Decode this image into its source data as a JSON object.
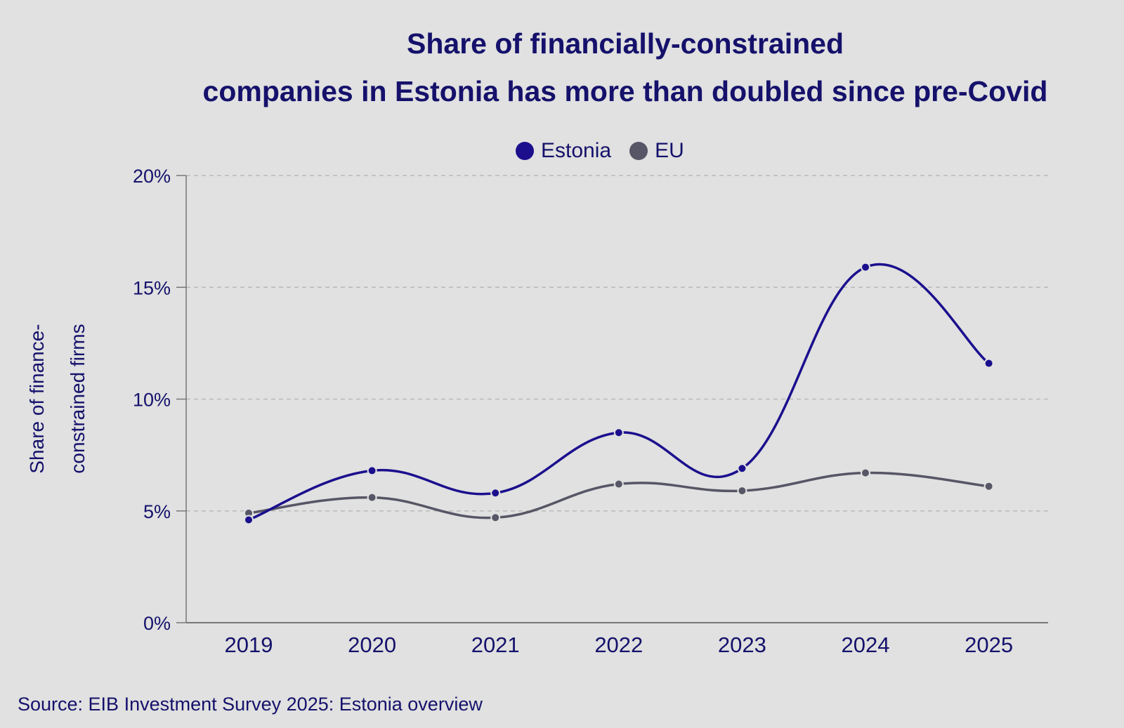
{
  "chart_data": {
    "type": "line",
    "title": [
      "Share of financially-constrained",
      "companies in Estonia has more than doubled since pre-Covid"
    ],
    "xlabel": "",
    "ylabel": [
      "Share of finance-",
      "constrained firms"
    ],
    "categories": [
      "2019",
      "2020",
      "2021",
      "2022",
      "2023",
      "2024",
      "2025"
    ],
    "series": [
      {
        "name": "Estonia",
        "color": "#1b0f8e",
        "values": [
          4.6,
          6.8,
          5.8,
          8.5,
          6.9,
          15.9,
          11.6
        ]
      },
      {
        "name": "EU",
        "color": "#565666",
        "values": [
          4.9,
          5.6,
          4.7,
          6.2,
          5.9,
          6.7,
          6.1
        ]
      }
    ],
    "ylim": [
      0,
      20
    ],
    "yticks": [
      0,
      5,
      10,
      15,
      20
    ],
    "ytick_labels": [
      "0%",
      "5%",
      "10%",
      "15%",
      "20%"
    ],
    "grid": true,
    "legend_position": "top-center"
  },
  "source": "Source: EIB Investment Survey 2025: Estonia overview"
}
